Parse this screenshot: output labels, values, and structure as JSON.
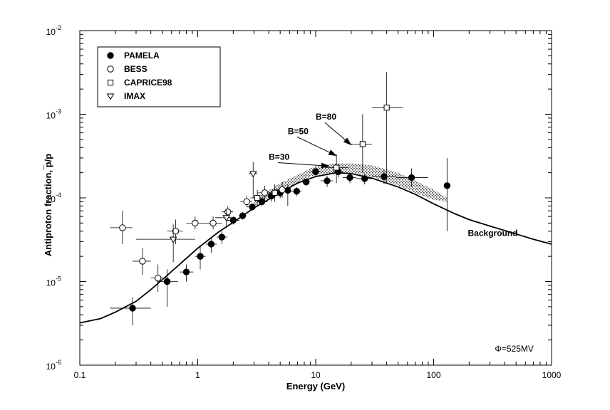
{
  "chart_data": {
    "type": "scatter",
    "xlabel": "Energy (GeV)",
    "ylabel": "Antiproton fraction, ̅p/p",
    "xscale": "log",
    "yscale": "log",
    "xlim": [
      0.1,
      1000
    ],
    "ylim": [
      1e-06,
      0.01
    ],
    "grid": false,
    "legend_position": "top-left",
    "x_ticks": [
      {
        "value": 0.1,
        "label": "0.1"
      },
      {
        "value": 1,
        "label": "1"
      },
      {
        "value": 10,
        "label": "10"
      },
      {
        "value": 100,
        "label": "100"
      },
      {
        "value": 1000,
        "label": "1000"
      }
    ],
    "y_ticks": [
      {
        "value": 1e-06,
        "base": "10",
        "exp": "-6"
      },
      {
        "value": 1e-05,
        "base": "10",
        "exp": "-5"
      },
      {
        "value": 0.0001,
        "base": "10",
        "exp": "-4"
      },
      {
        "value": 0.001,
        "base": "10",
        "exp": "-3"
      },
      {
        "value": 0.01,
        "base": "10",
        "exp": "-2"
      }
    ],
    "series": [
      {
        "name": "PAMELA",
        "marker": "filled-circle",
        "points": [
          {
            "x": 0.28,
            "y": 4.8e-06,
            "xerr": [
              0.18,
              0.4
            ],
            "yerr": [
              3e-06,
              6.5e-06
            ]
          },
          {
            "x": 0.55,
            "y": 1e-05,
            "xerr": [
              0.45,
              0.68
            ],
            "yerr": [
              5e-06,
              1.4e-05
            ]
          },
          {
            "x": 0.8,
            "y": 1.3e-05,
            "xerr": [
              0.7,
              0.92
            ],
            "yerr": [
              1e-05,
              1.6e-05
            ]
          },
          {
            "x": 1.05,
            "y": 2e-05,
            "xerr": [
              0.95,
              1.17
            ],
            "yerr": [
              1.4e-05,
              2.7e-05
            ]
          },
          {
            "x": 1.3,
            "y": 2.8e-05,
            "xerr": [
              1.17,
              1.45
            ],
            "yerr": [
              2.2e-05,
              3.4e-05
            ]
          },
          {
            "x": 1.6,
            "y": 3.4e-05,
            "xerr": [
              1.45,
              1.78
            ],
            "yerr": [
              2.8e-05,
              4e-05
            ]
          },
          {
            "x": 2.0,
            "y": 5.4e-05,
            "xerr": [
              1.78,
              2.25
            ],
            "yerr": [
              4.8e-05,
              6e-05
            ]
          },
          {
            "x": 2.4,
            "y": 6.1e-05,
            "xerr": [
              2.25,
              2.6
            ],
            "yerr": [
              5.5e-05,
              6.8e-05
            ]
          },
          {
            "x": 2.9,
            "y": 7.8e-05,
            "xerr": [
              2.6,
              3.2
            ],
            "yerr": [
              7e-05,
              8.6e-05
            ]
          },
          {
            "x": 3.5,
            "y": 9e-05,
            "xerr": [
              3.2,
              3.9
            ],
            "yerr": [
              8e-05,
              0.0001
            ]
          },
          {
            "x": 4.2,
            "y": 0.000105,
            "xerr": [
              3.9,
              4.6
            ],
            "yerr": [
              9e-05,
              0.00012
            ]
          },
          {
            "x": 5.0,
            "y": 0.000115,
            "xerr": [
              4.6,
              5.4
            ],
            "yerr": [
              0.0001,
              0.00013
            ]
          },
          {
            "x": 5.8,
            "y": 0.000123,
            "xerr": [
              5.4,
              6.2
            ],
            "yerr": [
              8e-05,
              0.000145
            ]
          },
          {
            "x": 6.9,
            "y": 0.00012,
            "xerr": [
              6.2,
              7.6
            ],
            "yerr": [
              0.000105,
              0.000135
            ]
          },
          {
            "x": 8.3,
            "y": 0.000155,
            "xerr": [
              7.6,
              9.0
            ],
            "yerr": [
              0.00014,
              0.00017
            ]
          },
          {
            "x": 10.0,
            "y": 0.000205,
            "xerr": [
              9.0,
              11.0
            ],
            "yerr": [
              0.00018,
              0.00023
            ]
          },
          {
            "x": 12.5,
            "y": 0.00016,
            "xerr": [
              11.0,
              14.0
            ],
            "yerr": [
              0.000135,
              0.000185
            ]
          },
          {
            "x": 15.5,
            "y": 0.000205,
            "xerr": [
              14.0,
              17.0
            ],
            "yerr": [
              0.000175,
              0.000235
            ]
          },
          {
            "x": 19.5,
            "y": 0.000175,
            "xerr": [
              17.0,
              22.0
            ],
            "yerr": [
              0.00015,
              0.0002
            ]
          },
          {
            "x": 26.0,
            "y": 0.00017,
            "xerr": [
              22.0,
              30.0
            ],
            "yerr": [
              0.000145,
              0.000195
            ]
          },
          {
            "x": 38.0,
            "y": 0.00018,
            "xerr": [
              30.0,
              48.0
            ],
            "yerr": [
              0.000145,
              0.00022
            ]
          },
          {
            "x": 65.0,
            "y": 0.000175,
            "xerr": [
              48.0,
              90.0
            ],
            "yerr": [
              0.000135,
              0.000225
            ]
          },
          {
            "x": 130.0,
            "y": 0.00014,
            "xerr": null,
            "yerr": [
              4e-05,
              0.0003
            ]
          }
        ]
      },
      {
        "name": "BESS",
        "marker": "open-circle",
        "points": [
          {
            "x": 0.23,
            "y": 4.4e-05,
            "xerr": [
              0.18,
              0.28
            ],
            "yerr": [
              2.8e-05,
              7e-05
            ]
          },
          {
            "x": 0.34,
            "y": 1.75e-05,
            "xerr": [
              0.28,
              0.4
            ],
            "yerr": [
              1.2e-05,
              2.5e-05
            ]
          },
          {
            "x": 0.46,
            "y": 1.1e-05,
            "xerr": [
              0.4,
              0.55
            ],
            "yerr": [
              7.5e-06,
              1.6e-05
            ]
          },
          {
            "x": 0.65,
            "y": 4e-05,
            "xerr": [
              0.55,
              0.75
            ],
            "yerr": [
              2.8e-05,
              5.5e-05
            ]
          },
          {
            "x": 0.95,
            "y": 5e-05,
            "xerr": [
              0.8,
              1.1
            ],
            "yerr": [
              4.2e-05,
              6e-05
            ]
          },
          {
            "x": 1.35,
            "y": 5e-05,
            "xerr": [
              1.1,
              1.6
            ],
            "yerr": [
              4.2e-05,
              6e-05
            ]
          },
          {
            "x": 1.8,
            "y": 6.8e-05,
            "xerr": [
              1.6,
              2.0
            ],
            "yerr": [
              5.8e-05,
              8e-05
            ]
          },
          {
            "x": 2.6,
            "y": 9e-05,
            "xerr": [
              2.3,
              2.9
            ],
            "yerr": [
              7.8e-05,
              0.000105
            ]
          },
          {
            "x": 3.7,
            "y": 0.000115,
            "xerr": [
              3.2,
              4.2
            ],
            "yerr": [
              9.5e-05,
              0.00014
            ]
          },
          {
            "x": 5.2,
            "y": 0.000125,
            "xerr": [
              4.5,
              6.0
            ],
            "yerr": [
              0.0001,
              0.000155
            ]
          }
        ]
      },
      {
        "name": "CAPRICE98",
        "marker": "open-square",
        "points": [
          {
            "x": 3.2,
            "y": 0.0001,
            "xerr": [
              2.8,
              3.6
            ],
            "yerr": [
              8e-05,
              0.000125
            ]
          },
          {
            "x": 4.5,
            "y": 0.000115,
            "xerr": [
              3.9,
              5.1
            ],
            "yerr": [
              9e-05,
              0.000145
            ]
          },
          {
            "x": 15.0,
            "y": 0.00023,
            "xerr": [
              12.0,
              19.0
            ],
            "yerr": [
              0.00015,
              0.00033
            ]
          },
          {
            "x": 25.0,
            "y": 0.00044,
            "xerr": [
              20.0,
              30.0
            ],
            "yerr": [
              0.0002,
              0.001
            ]
          },
          {
            "x": 40.0,
            "y": 0.0012,
            "xerr": [
              30.0,
              55.0
            ],
            "yerr": [
              0.00015,
              0.0032
            ]
          }
        ]
      },
      {
        "name": "IMAX",
        "marker": "open-triangle-down",
        "points": [
          {
            "x": 0.62,
            "y": 3.2e-05,
            "xerr": [
              0.3,
              0.95
            ],
            "yerr": [
              1.7e-05,
              4.8e-05
            ]
          },
          {
            "x": 1.75,
            "y": 5.8e-05,
            "xerr": [
              1.4,
              2.1
            ],
            "yerr": [
              4.6e-05,
              7.3e-05
            ]
          },
          {
            "x": 2.95,
            "y": 0.000195,
            "xerr": [
              2.7,
              3.2
            ],
            "yerr": [
              0.0001,
              0.00027
            ]
          }
        ]
      }
    ],
    "background_curve": {
      "label": "Background",
      "points": [
        [
          0.1,
          3.2e-06
        ],
        [
          0.15,
          3.6e-06
        ],
        [
          0.2,
          4.3e-06
        ],
        [
          0.3,
          5.8e-06
        ],
        [
          0.4,
          8e-06
        ],
        [
          0.5,
          1.05e-05
        ],
        [
          0.7,
          1.6e-05
        ],
        [
          1.0,
          2.5e-05
        ],
        [
          1.5,
          3.9e-05
        ],
        [
          2.0,
          5.1e-05
        ],
        [
          3.0,
          7.6e-05
        ],
        [
          4.0,
          9.6e-05
        ],
        [
          5.0,
          0.000115
        ],
        [
          7.0,
          0.00015
        ],
        [
          10.0,
          0.00018
        ],
        [
          15.0,
          0.0002
        ],
        [
          20.0,
          0.000195
        ],
        [
          30.0,
          0.000172
        ],
        [
          50.0,
          0.000135
        ],
        [
          70.0,
          0.00011
        ],
        [
          100.0,
          8.5e-05
        ],
        [
          150.0,
          6.5e-05
        ],
        [
          200.0,
          5.5e-05
        ],
        [
          300.0,
          4.6e-05
        ],
        [
          500.0,
          3.7e-05
        ],
        [
          700.0,
          3.2e-05
        ],
        [
          1000.0,
          2.8e-05
        ]
      ]
    },
    "signal_band": {
      "lower": [
        [
          3.0,
          8e-05
        ],
        [
          5.0,
          0.00012
        ],
        [
          10.0,
          0.00019
        ],
        [
          20.0,
          0.0002
        ],
        [
          30.0,
          0.00018
        ],
        [
          50.0,
          0.00014
        ],
        [
          70.0,
          0.000115
        ],
        [
          100.0,
          9.5e-05
        ],
        [
          130.0,
          9e-05
        ]
      ],
      "upper": [
        [
          3.0,
          9.5e-05
        ],
        [
          5.0,
          0.00015
        ],
        [
          10.0,
          0.00024
        ],
        [
          15.0,
          0.00026
        ],
        [
          20.0,
          0.00026
        ],
        [
          30.0,
          0.000245
        ],
        [
          50.0,
          0.0002
        ],
        [
          70.0,
          0.00016
        ],
        [
          100.0,
          0.000125
        ],
        [
          130.0,
          0.0001
        ]
      ]
    },
    "annotations": [
      {
        "text": "B=30",
        "x": 4.0,
        "y": 0.000285,
        "arrow_to": {
          "x": 13.0,
          "y": 0.00024
        }
      },
      {
        "text": "B=50",
        "x": 5.8,
        "y": 0.00058,
        "arrow_to": {
          "x": 15.0,
          "y": 0.00032
        }
      },
      {
        "text": "B=80",
        "x": 10.0,
        "y": 0.00086,
        "arrow_to": {
          "x": 20.0,
          "y": 0.00043
        }
      },
      {
        "text": "Background",
        "x": 195.0,
        "y": 3.5e-05,
        "arrow_to": null
      }
    ],
    "phi_label": {
      "symbol": "Φ",
      "value": "=525MV",
      "x": 330.0,
      "y": 1.45e-06
    }
  }
}
